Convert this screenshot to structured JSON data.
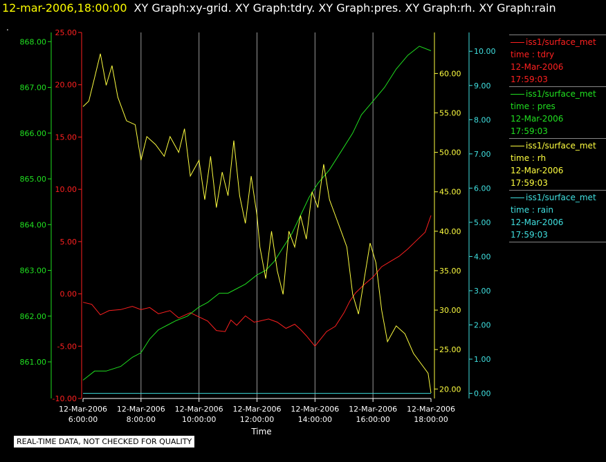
{
  "header": {
    "time": "12-mar-2006,18:00:00",
    "titles": "XY Graph:xy-grid.  XY Graph:tdry.  XY Graph:pres.  XY Graph:rh.  XY Graph:rain",
    "dot": "."
  },
  "footer": {
    "note": "REAL-TIME DATA, NOT CHECKED FOR QUALITY"
  },
  "chart_data": {
    "type": "line",
    "xlabel": "Time",
    "x_ticks": [
      {
        "date": "12-Mar-2006",
        "time": "6:00:00"
      },
      {
        "date": "12-Mar-2006",
        "time": "8:00:00"
      },
      {
        "date": "12-Mar-2006",
        "time": "10:00:00"
      },
      {
        "date": "12-Mar-2006",
        "time": "12:00:00"
      },
      {
        "date": "12-Mar-2006",
        "time": "14:00:00"
      },
      {
        "date": "12-Mar-2006",
        "time": "16:00:00"
      },
      {
        "date": "12-Mar-2006",
        "time": "18:00:00"
      }
    ],
    "x_range_hours": [
      6,
      18
    ],
    "grid": "vertical",
    "legend_position": "right",
    "axes": {
      "tdry": {
        "color": "#ff2020",
        "range": [
          -10,
          25
        ],
        "ticks": [
          "-10.00",
          "-5.00",
          "0.00",
          "5.00",
          "10.00",
          "15.00",
          "20.00",
          "25.00"
        ]
      },
      "pres": {
        "color": "#20e020",
        "range": [
          860.2,
          868.2
        ],
        "ticks": [
          "861.00",
          "862.00",
          "863.00",
          "864.00",
          "865.00",
          "866.00",
          "867.00",
          "868.00"
        ]
      },
      "rh": {
        "color": "#ffff40",
        "range": [
          18.8,
          65.2
        ],
        "ticks": [
          "20.00",
          "25.00",
          "30.00",
          "35.00",
          "40.00",
          "45.00",
          "50.00",
          "55.00",
          "60.00"
        ]
      },
      "rain": {
        "color": "#40e0e0",
        "range": [
          -0.15,
          10.55
        ],
        "ticks": [
          "0.00",
          "1.00",
          "2.00",
          "3.00",
          "4.00",
          "5.00",
          "6.00",
          "7.00",
          "8.00",
          "9.00",
          "10.00"
        ]
      }
    },
    "series": [
      {
        "key": "tdry",
        "color": "#ff2020",
        "points": [
          [
            6.0,
            -0.8
          ],
          [
            6.3,
            -1.0
          ],
          [
            6.6,
            -2.0
          ],
          [
            6.9,
            -1.6
          ],
          [
            7.3,
            -1.5
          ],
          [
            7.7,
            -1.2
          ],
          [
            8.0,
            -1.5
          ],
          [
            8.3,
            -1.3
          ],
          [
            8.6,
            -1.9
          ],
          [
            9.0,
            -1.6
          ],
          [
            9.3,
            -2.3
          ],
          [
            9.7,
            -1.8
          ],
          [
            10.0,
            -2.2
          ],
          [
            10.3,
            -2.6
          ],
          [
            10.6,
            -3.5
          ],
          [
            10.9,
            -3.6
          ],
          [
            11.1,
            -2.5
          ],
          [
            11.3,
            -3.0
          ],
          [
            11.6,
            -2.1
          ],
          [
            11.9,
            -2.7
          ],
          [
            12.1,
            -2.6
          ],
          [
            12.4,
            -2.4
          ],
          [
            12.7,
            -2.7
          ],
          [
            13.0,
            -3.3
          ],
          [
            13.3,
            -2.9
          ],
          [
            13.5,
            -3.4
          ],
          [
            13.7,
            -4.0
          ],
          [
            14.0,
            -5.0
          ],
          [
            14.2,
            -4.3
          ],
          [
            14.4,
            -3.6
          ],
          [
            14.7,
            -3.1
          ],
          [
            15.0,
            -1.8
          ],
          [
            15.2,
            -0.7
          ],
          [
            15.4,
            0.1
          ],
          [
            15.7,
            0.9
          ],
          [
            16.0,
            1.6
          ],
          [
            16.3,
            2.6
          ],
          [
            16.6,
            3.1
          ],
          [
            16.9,
            3.6
          ],
          [
            17.2,
            4.3
          ],
          [
            17.5,
            5.1
          ],
          [
            17.8,
            5.9
          ],
          [
            18.0,
            7.5
          ]
        ]
      },
      {
        "key": "pres",
        "color": "#20e020",
        "points": [
          [
            6.0,
            860.6
          ],
          [
            6.4,
            860.8
          ],
          [
            6.8,
            860.8
          ],
          [
            7.3,
            860.9
          ],
          [
            7.7,
            861.1
          ],
          [
            8.0,
            861.2
          ],
          [
            8.3,
            861.5
          ],
          [
            8.6,
            861.7
          ],
          [
            8.9,
            861.8
          ],
          [
            9.2,
            861.9
          ],
          [
            9.6,
            862.0
          ],
          [
            10.0,
            862.2
          ],
          [
            10.3,
            862.3
          ],
          [
            10.7,
            862.5
          ],
          [
            11.0,
            862.5
          ],
          [
            11.3,
            862.6
          ],
          [
            11.6,
            862.7
          ],
          [
            12.0,
            862.9
          ],
          [
            12.3,
            863.0
          ],
          [
            12.6,
            863.2
          ],
          [
            12.9,
            863.5
          ],
          [
            13.2,
            863.8
          ],
          [
            13.5,
            864.2
          ],
          [
            13.8,
            864.6
          ],
          [
            14.1,
            864.9
          ],
          [
            14.5,
            865.2
          ],
          [
            14.9,
            865.6
          ],
          [
            15.3,
            866.0
          ],
          [
            15.6,
            866.4
          ],
          [
            16.0,
            866.7
          ],
          [
            16.4,
            867.0
          ],
          [
            16.8,
            867.4
          ],
          [
            17.2,
            867.7
          ],
          [
            17.6,
            867.9
          ],
          [
            18.0,
            867.8
          ]
        ]
      },
      {
        "key": "rh",
        "color": "#ffff40",
        "points": [
          [
            6.0,
            55.8
          ],
          [
            6.2,
            56.5
          ],
          [
            6.4,
            59.5
          ],
          [
            6.6,
            62.5
          ],
          [
            6.8,
            58.5
          ],
          [
            7.0,
            61.0
          ],
          [
            7.2,
            57.0
          ],
          [
            7.5,
            54.0
          ],
          [
            7.8,
            53.5
          ],
          [
            8.0,
            49.0
          ],
          [
            8.2,
            52.0
          ],
          [
            8.5,
            51.0
          ],
          [
            8.8,
            49.5
          ],
          [
            9.0,
            52.0
          ],
          [
            9.3,
            50.0
          ],
          [
            9.5,
            53.0
          ],
          [
            9.7,
            47.0
          ],
          [
            10.0,
            49.0
          ],
          [
            10.2,
            44.0
          ],
          [
            10.4,
            49.5
          ],
          [
            10.6,
            43.0
          ],
          [
            10.8,
            47.5
          ],
          [
            11.0,
            44.5
          ],
          [
            11.2,
            51.5
          ],
          [
            11.4,
            44.5
          ],
          [
            11.6,
            41.0
          ],
          [
            11.8,
            47.0
          ],
          [
            12.0,
            42.0
          ],
          [
            12.1,
            38.0
          ],
          [
            12.3,
            34.0
          ],
          [
            12.5,
            40.0
          ],
          [
            12.7,
            35.0
          ],
          [
            12.9,
            32.0
          ],
          [
            13.1,
            40.0
          ],
          [
            13.3,
            38.0
          ],
          [
            13.5,
            42.0
          ],
          [
            13.7,
            39.0
          ],
          [
            13.9,
            45.0
          ],
          [
            14.1,
            43.0
          ],
          [
            14.3,
            48.5
          ],
          [
            14.5,
            44.0
          ],
          [
            14.7,
            42.0
          ],
          [
            14.9,
            40.0
          ],
          [
            15.1,
            38.0
          ],
          [
            15.3,
            32.0
          ],
          [
            15.5,
            29.5
          ],
          [
            15.7,
            34.0
          ],
          [
            15.9,
            38.5
          ],
          [
            16.1,
            36.0
          ],
          [
            16.3,
            30.0
          ],
          [
            16.5,
            26.0
          ],
          [
            16.8,
            28.0
          ],
          [
            17.1,
            27.0
          ],
          [
            17.4,
            24.5
          ],
          [
            17.7,
            23.0
          ],
          [
            17.9,
            22.0
          ],
          [
            18.0,
            19.5
          ]
        ]
      },
      {
        "key": "rain",
        "color": "#40e0e0",
        "points": [
          [
            6.0,
            0.0
          ],
          [
            18.0,
            0.0
          ]
        ]
      }
    ],
    "legend": [
      {
        "key": "tdry",
        "color": "#ff2020",
        "name": "iss1/surface_met",
        "field": "time : tdry",
        "date": "12-Mar-2006",
        "time": "17:59:03"
      },
      {
        "key": "pres",
        "color": "#20e020",
        "name": "iss1/surface_met",
        "field": "time : pres",
        "date": "12-Mar-2006",
        "time": "17:59:03"
      },
      {
        "key": "rh",
        "color": "#ffff40",
        "name": "iss1/surface_met",
        "field": "time : rh",
        "date": "12-Mar-2006",
        "time": "17:59:03"
      },
      {
        "key": "rain",
        "color": "#40e0e0",
        "name": "iss1/surface_met",
        "field": "time : rain",
        "date": "12-Mar-2006",
        "time": "17:59:03"
      }
    ]
  }
}
